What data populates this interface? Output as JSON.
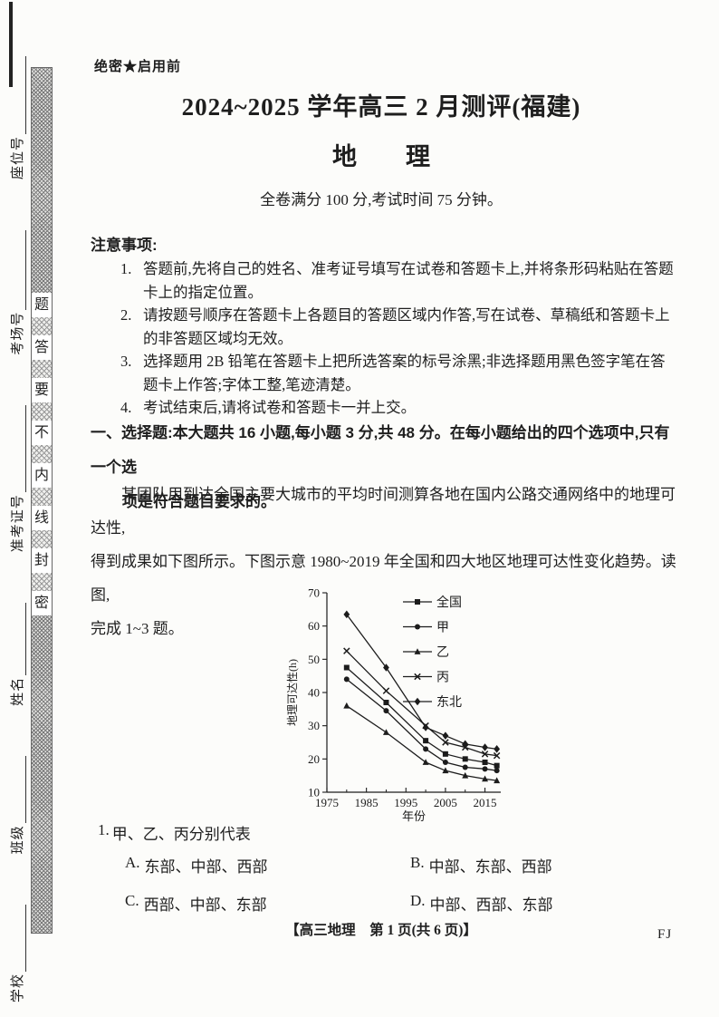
{
  "page": {
    "secrecy_notice": "绝密★启用前",
    "title": "2024~2025 学年高三 2 月测评(福建)",
    "subject": "地　　理",
    "exam_info": "全卷满分 100 分,考试时间 75 分钟。",
    "footer": "【高三地理　第 1 页(共 6 页)】",
    "footer_code": "FJ",
    "ink_color": "#1e1e1e"
  },
  "sidebar": {
    "fields": [
      {
        "label": "学校"
      },
      {
        "label": "班级"
      },
      {
        "label": "姓名"
      },
      {
        "label": "准考证号"
      },
      {
        "label": "考场号"
      },
      {
        "label": "座位号"
      }
    ],
    "seal": {
      "text": "密封线内不要答题",
      "chars_top_to_bottom": [
        "题",
        "答",
        "要",
        "不",
        "内",
        "线",
        "封",
        "密"
      ]
    }
  },
  "notes": {
    "heading": "注意事项:",
    "items": [
      {
        "num": "1.",
        "text": "答题前,先将自己的姓名、准考证号填写在试卷和答题卡上,并将条形码粘贴在答题卡上的指定位置。"
      },
      {
        "num": "2.",
        "text": "请按题号顺序在答题卡上各题目的答题区域内作答,写在试卷、草稿纸和答题卡上的非答题区域均无效。"
      },
      {
        "num": "3.",
        "text": "选择题用 2B 铅笔在答题卡上把所选答案的标号涂黑;非选择题用黑色签字笔在答题卡上作答;字体工整,笔迹清楚。"
      },
      {
        "num": "4.",
        "text": "考试结束后,请将试卷和答题卡一并上交。"
      }
    ]
  },
  "section": {
    "line1": "一、选择题:本大题共 16 小题,每小题 3 分,共 48 分。在每小题给出的四个选项中,只有一个选",
    "line2": "项是符合题目要求的。"
  },
  "passage": {
    "lines": [
      "某团队用到达全国主要大城市的平均时间测算各地在国内公路交通网络中的地理可达性,",
      "得到成果如下图所示。下图示意 1980~2019 年全国和四大地区地理可达性变化趋势。读图,",
      "完成 1~3 题。"
    ]
  },
  "question1": {
    "num": "1.",
    "stem": "甲、乙、丙分别代表",
    "options": [
      {
        "key": "A.",
        "text": "东部、中部、西部"
      },
      {
        "key": "B.",
        "text": "中部、东部、西部"
      },
      {
        "key": "C.",
        "text": "西部、中部、东部"
      },
      {
        "key": "D.",
        "text": "中部、西部、东部"
      }
    ]
  },
  "chart_data": {
    "type": "line",
    "title": "",
    "xlabel": "年份",
    "ylabel": "地理可达性(h)",
    "x": [
      1980,
      1990,
      2000,
      2005,
      2010,
      2015,
      2018
    ],
    "series": [
      {
        "name": "全国",
        "marker": "square",
        "values": [
          47.5,
          37.0,
          25.5,
          21.5,
          20.0,
          19.0,
          18.0
        ]
      },
      {
        "name": "甲",
        "marker": "circle",
        "values": [
          44.0,
          34.5,
          23.0,
          19.0,
          17.5,
          17.0,
          16.5
        ]
      },
      {
        "name": "乙",
        "marker": "triangle",
        "values": [
          36.0,
          28.0,
          19.0,
          16.5,
          15.0,
          14.0,
          13.5
        ]
      },
      {
        "name": "丙",
        "marker": "x",
        "values": [
          52.5,
          40.5,
          30.0,
          25.0,
          23.5,
          21.5,
          21.0
        ]
      },
      {
        "name": "东北",
        "marker": "diamond",
        "values": [
          63.5,
          47.5,
          29.5,
          27.0,
          24.5,
          23.5,
          23.0
        ]
      }
    ],
    "xticks": [
      1975,
      1985,
      1995,
      2005,
      2015
    ],
    "minor_xticks": [
      1980,
      1990,
      2000,
      2010
    ],
    "yticks": [
      10,
      20,
      30,
      40,
      50,
      60,
      70
    ],
    "xlim": [
      1975,
      2019
    ],
    "ylim": [
      10,
      70
    ],
    "grid": false,
    "legend_position": "top-right",
    "color": "#1c1c1c"
  }
}
